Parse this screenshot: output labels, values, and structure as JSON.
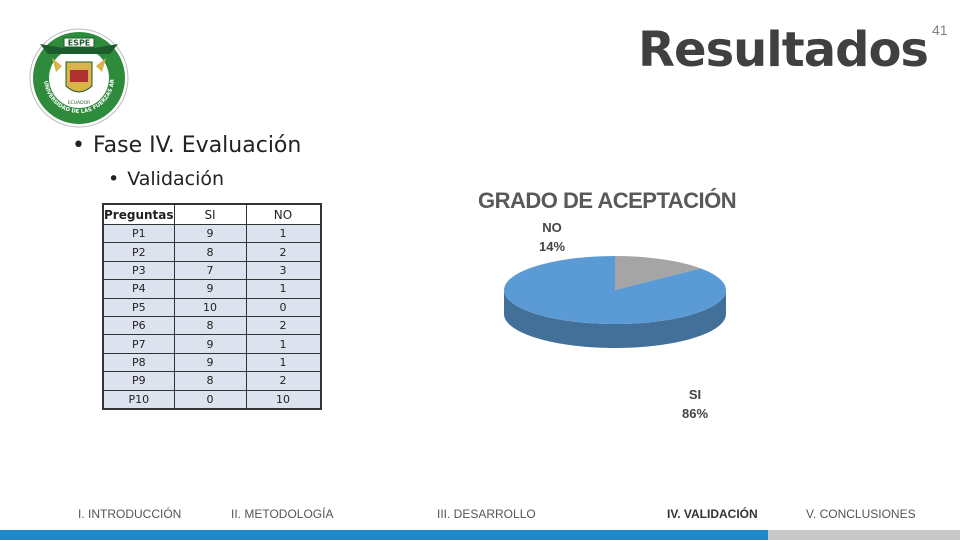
{
  "slide": {
    "title": "Resultados",
    "page_number": "41"
  },
  "logo": {
    "top_text": "ESPE",
    "ring_text": "UNIVERSIDAD DE LAS FUERZAS ARMADAS",
    "country": "ECUADOR"
  },
  "bullets": {
    "level1": "Fase IV. Evaluación",
    "level2": "Validación"
  },
  "table": {
    "headers": [
      "Preguntas",
      "SI",
      "NO"
    ],
    "rows": [
      [
        "P1",
        "9",
        "1"
      ],
      [
        "P2",
        "8",
        "2"
      ],
      [
        "P3",
        "7",
        "3"
      ],
      [
        "P4",
        "9",
        "1"
      ],
      [
        "P5",
        "10",
        "0"
      ],
      [
        "P6",
        "8",
        "2"
      ],
      [
        "P7",
        "9",
        "1"
      ],
      [
        "P8",
        "9",
        "1"
      ],
      [
        "P9",
        "8",
        "2"
      ],
      [
        "P10",
        "0",
        "10"
      ]
    ]
  },
  "chart_data": {
    "type": "pie",
    "title": "GRADO DE ACEPTACIÓN",
    "slices": [
      {
        "label": "SI",
        "value": 86,
        "value_label": "86%",
        "color": "#5b9bd5"
      },
      {
        "label": "NO",
        "value": 14,
        "value_label": "14%",
        "color": "#a5a5a5"
      }
    ]
  },
  "nav": [
    {
      "label": "I. INTRODUCCIÓN",
      "active": false
    },
    {
      "label": "II. METODOLOGÍA",
      "active": false
    },
    {
      "label": "III. DESARROLLO",
      "active": false
    },
    {
      "label": "IV. VALIDACIÓN",
      "active": true
    },
    {
      "label": "V. CONCLUSIONES",
      "active": false
    }
  ],
  "colors": {
    "accent_blue": "#1e88c8",
    "accent_gray": "#c8c8c8",
    "title_gray": "#404040"
  }
}
